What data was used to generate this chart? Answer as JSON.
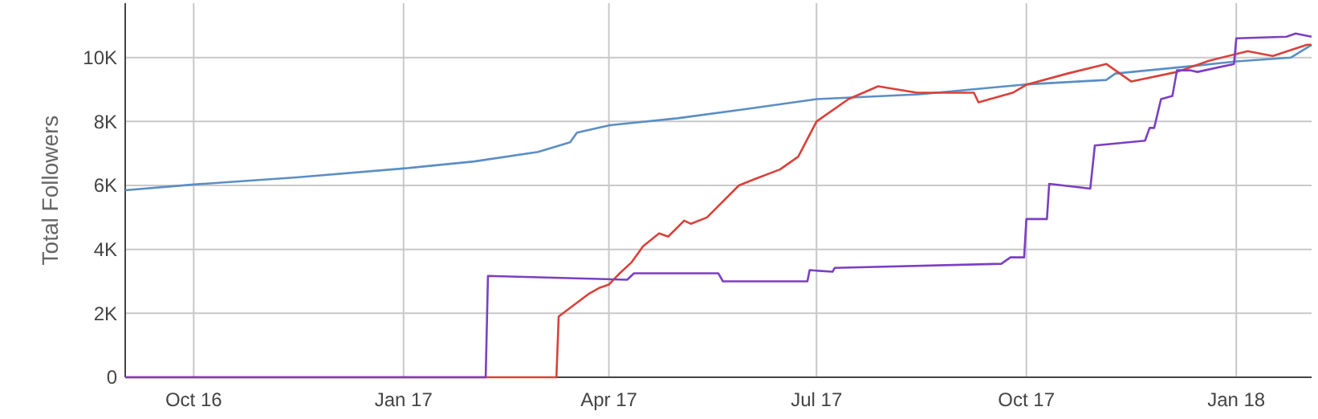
{
  "chart_data": {
    "type": "line",
    "ylabel": "Total Followers",
    "xlim": [
      "2016-09-01",
      "2018-02-03"
    ],
    "ylim": [
      0,
      11700
    ],
    "xticks": [
      {
        "value": "2016-10-01",
        "label": "Oct 16"
      },
      {
        "value": "2017-01-01",
        "label": "Jan 17"
      },
      {
        "value": "2017-04-01",
        "label": "Apr 17"
      },
      {
        "value": "2017-07-01",
        "label": "Jul 17"
      },
      {
        "value": "2017-10-01",
        "label": "Oct 17"
      },
      {
        "value": "2018-01-01",
        "label": "Jan 18"
      }
    ],
    "yticks": [
      0,
      {
        "value": 2000,
        "label": "2K"
      },
      {
        "value": 4000,
        "label": "4K"
      },
      {
        "value": 6000,
        "label": "6K"
      },
      {
        "value": 8000,
        "label": "8K"
      },
      {
        "value": 10000,
        "label": "10K"
      }
    ],
    "grid": true,
    "marker": "none",
    "line_style": "solid",
    "series": [
      {
        "color": "#5b8ec4",
        "x": [
          "2016-09-01",
          "2016-10-01",
          "2016-11-15",
          "2017-01-01",
          "2017-02-01",
          "2017-03-01",
          "2017-03-15",
          "2017-03-18",
          "2017-04-01",
          "2017-05-01",
          "2017-06-01",
          "2017-07-01",
          "2017-08-15",
          "2017-10-01",
          "2017-11-05",
          "2017-11-09",
          "2017-12-15",
          "2018-01-01",
          "2018-01-25",
          "2018-02-03"
        ],
        "values": [
          5850,
          6030,
          6250,
          6530,
          6750,
          7050,
          7350,
          7650,
          7880,
          8100,
          8400,
          8700,
          8850,
          9160,
          9300,
          9500,
          9750,
          9880,
          10000,
          10400
        ]
      },
      {
        "color": "#d9413a",
        "x": [
          "2016-09-01",
          "2017-03-09",
          "2017-03-10",
          "2017-03-23",
          "2017-03-28",
          "2017-04-01",
          "2017-04-05",
          "2017-04-11",
          "2017-04-16",
          "2017-04-23",
          "2017-04-27",
          "2017-05-04",
          "2017-05-07",
          "2017-05-14",
          "2017-05-28",
          "2017-06-04",
          "2017-06-15",
          "2017-06-23",
          "2017-07-01",
          "2017-07-15",
          "2017-07-28",
          "2017-08-14",
          "2017-09-08",
          "2017-09-10",
          "2017-09-25",
          "2017-10-01",
          "2017-10-19",
          "2017-11-05",
          "2017-11-16",
          "2017-12-06",
          "2017-12-20",
          "2018-01-06",
          "2018-01-17",
          "2018-02-01",
          "2018-02-03"
        ],
        "values": [
          0,
          0,
          1900,
          2600,
          2800,
          2900,
          3200,
          3600,
          4100,
          4500,
          4400,
          4900,
          4800,
          5000,
          6000,
          6200,
          6500,
          6900,
          8000,
          8700,
          9100,
          8900,
          8900,
          8600,
          8900,
          9150,
          9500,
          9800,
          9250,
          9550,
          9900,
          10200,
          10050,
          10400,
          10400
        ]
      },
      {
        "color": "#7b3fc4",
        "x": [
          "2016-09-01",
          "2017-02-06",
          "2017-02-07",
          "2017-04-09",
          "2017-04-12",
          "2017-05-19",
          "2017-05-21",
          "2017-06-27",
          "2017-06-28",
          "2017-07-08",
          "2017-07-09",
          "2017-09-20",
          "2017-09-24",
          "2017-09-30",
          "2017-10-01",
          "2017-10-10",
          "2017-10-11",
          "2017-10-29",
          "2017-10-31",
          "2017-11-22",
          "2017-11-24",
          "2017-11-26",
          "2017-11-29",
          "2017-12-04",
          "2017-12-06",
          "2017-12-12",
          "2017-12-15",
          "2017-12-31",
          "2018-01-01",
          "2018-01-23",
          "2018-01-27",
          "2018-02-03"
        ],
        "values": [
          0,
          0,
          3170,
          3050,
          3250,
          3250,
          3000,
          3000,
          3350,
          3300,
          3420,
          3550,
          3750,
          3750,
          4950,
          4950,
          6050,
          5900,
          7250,
          7400,
          7800,
          7800,
          8700,
          8800,
          9600,
          9600,
          9550,
          9800,
          10600,
          10650,
          10750,
          10650
        ]
      }
    ]
  }
}
